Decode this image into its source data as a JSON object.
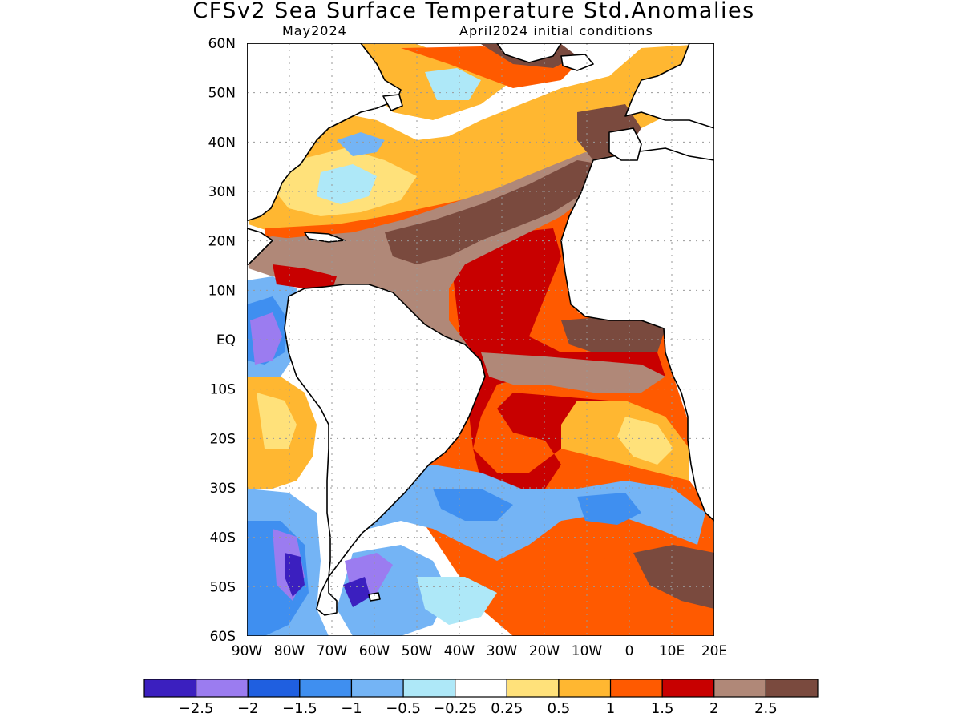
{
  "title": "CFSv2 Sea Surface Temperature Std.Anomalies",
  "subtitle_left": "May2024",
  "subtitle_right": "April2024 initial conditions",
  "map": {
    "lon_range": [
      -90,
      20
    ],
    "lat_range": [
      -60,
      60
    ],
    "lon_ticks": [
      {
        "value": -90,
        "label": "90W"
      },
      {
        "value": -80,
        "label": "80W"
      },
      {
        "value": -70,
        "label": "70W"
      },
      {
        "value": -60,
        "label": "60W"
      },
      {
        "value": -50,
        "label": "50W"
      },
      {
        "value": -40,
        "label": "40W"
      },
      {
        "value": -30,
        "label": "30W"
      },
      {
        "value": -20,
        "label": "20W"
      },
      {
        "value": -10,
        "label": "10W"
      },
      {
        "value": 0,
        "label": "0"
      },
      {
        "value": 10,
        "label": "10E"
      },
      {
        "value": 20,
        "label": "20E"
      }
    ],
    "lat_ticks": [
      {
        "value": 60,
        "label": "60N"
      },
      {
        "value": 50,
        "label": "50N"
      },
      {
        "value": 40,
        "label": "40N"
      },
      {
        "value": 30,
        "label": "30N"
      },
      {
        "value": 20,
        "label": "20N"
      },
      {
        "value": 10,
        "label": "10N"
      },
      {
        "value": 0,
        "label": "EQ"
      },
      {
        "value": -10,
        "label": "10S"
      },
      {
        "value": -20,
        "label": "20S"
      },
      {
        "value": -30,
        "label": "30S"
      },
      {
        "value": -40,
        "label": "40S"
      },
      {
        "value": -50,
        "label": "50S"
      },
      {
        "value": -60,
        "label": "60S"
      }
    ],
    "grid": true,
    "grid_style": "dotted"
  },
  "colorbar": {
    "colors": [
      "#3b1fbf",
      "#9b7cf0",
      "#1f5fe0",
      "#3f8ff0",
      "#74b4f5",
      "#aee8f8",
      "#ffffff",
      "#ffe17a",
      "#ffb731",
      "#ff5a00",
      "#c80000",
      "#b08878",
      "#7a4a3e"
    ],
    "labels": [
      "−2.5",
      "−2",
      "−1.5",
      "−1",
      "−0.5",
      "−0.25",
      "0.25",
      "0.5",
      "1",
      "1.5",
      "2",
      "2.5"
    ]
  }
}
